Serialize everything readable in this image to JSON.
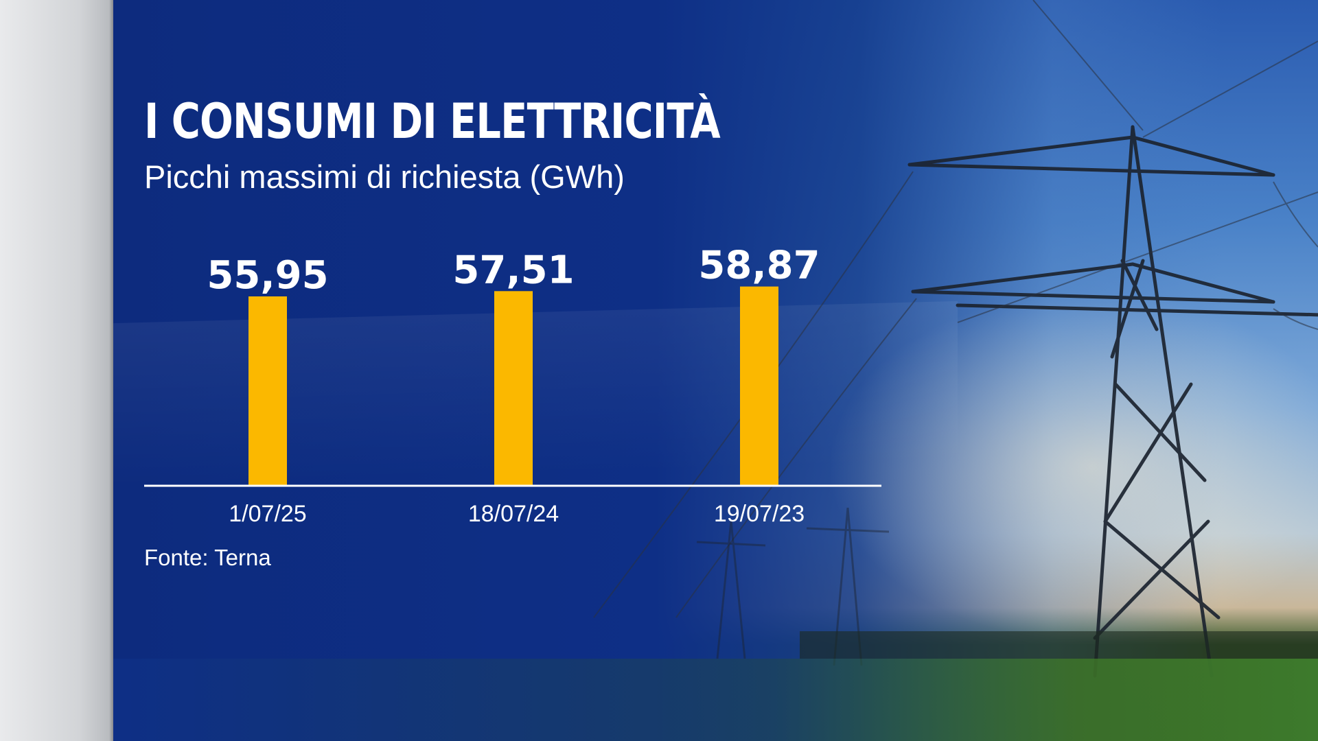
{
  "title": "I CONSUMI DI ELETTRICITÀ",
  "subtitle": "Picchi massimi di richiesta (GWh)",
  "source": "Fonte: Terna",
  "colors": {
    "background": "#0e2f86",
    "bar": "#fbb800",
    "text": "#ffffff",
    "side_panel": "#dcdee1"
  },
  "chart_data": {
    "type": "bar",
    "title": "I CONSUMI DI ELETTRICITÀ",
    "subtitle": "Picchi massimi di richiesta (GWh)",
    "categories": [
      "1/07/25",
      "18/07/24",
      "19/07/23"
    ],
    "values": [
      55.95,
      57.51,
      58.87
    ],
    "value_labels": [
      "55,95",
      "57,51",
      "58,87"
    ],
    "xlabel": "",
    "ylabel": "",
    "grid": false,
    "legend": "none",
    "source": "Fonte: Terna"
  }
}
